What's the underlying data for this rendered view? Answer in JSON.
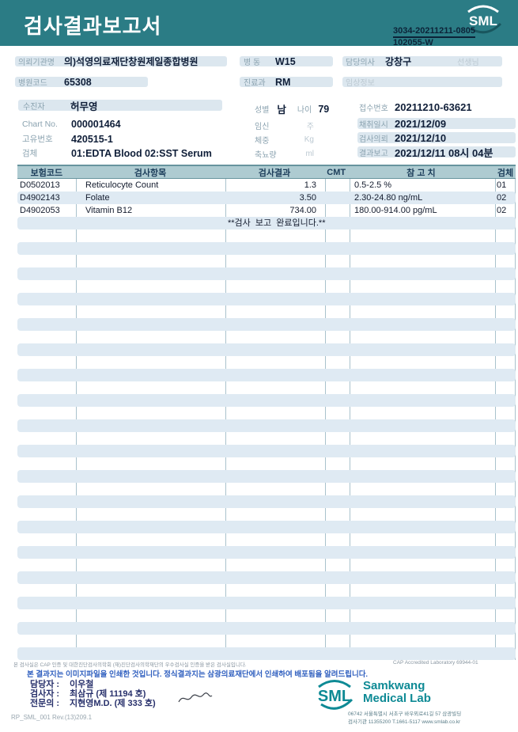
{
  "header": {
    "title": "검사결과보고서",
    "logo_text": "SML",
    "report_no_line1": "3034-20211211-0805",
    "report_no_line2": "102055-W"
  },
  "info": {
    "referral_org": {
      "label": "의뢰기관명",
      "value": "의)석영의료재단창원제일종합병원"
    },
    "hospital_code": {
      "label": "병원코드",
      "value": "65308"
    },
    "patient": {
      "label": "수진자",
      "value": "허무영"
    },
    "chart_no": {
      "label": "Chart No.",
      "value": "000001464"
    },
    "unique_no": {
      "label": "고유번호",
      "value": "420515-1"
    },
    "specimen": {
      "label": "검체",
      "value": "01:EDTA Blood 02:SST Serum"
    },
    "ward": {
      "label": "병 동",
      "value": "W15"
    },
    "department": {
      "label": "진료과",
      "value": "RM"
    },
    "sex": {
      "label": "성별",
      "value": "남"
    },
    "age": {
      "label": "나이",
      "value": "79"
    },
    "pregnancy": {
      "label": "임신",
      "unit": "주"
    },
    "weight": {
      "label": "체중",
      "unit": "Kg"
    },
    "urine_volume": {
      "label": "축뇨량",
      "unit": "ml"
    },
    "doctor": {
      "label": "담당의사",
      "value": "강창구",
      "suffix": "선생님"
    },
    "clinical_info": {
      "label": "임상정보",
      "value": ""
    },
    "receipt_no": {
      "label": "접수번호",
      "value": "20211210-63621"
    },
    "collection_date": {
      "label": "채취일시",
      "value": "2021/12/09"
    },
    "request_date": {
      "label": "검사의뢰",
      "value": "2021/12/10"
    },
    "report_date": {
      "label": "결과보고",
      "value": "2021/12/11 08시 04분"
    }
  },
  "table": {
    "headers": {
      "code": "보험코드",
      "name": "검사항목",
      "result": "검사결과",
      "cmt": "CMT",
      "reference": "참 고 치",
      "specimen": "검체"
    },
    "rows": [
      {
        "code": "D0502013",
        "name": "Reticulocyte Count",
        "result": "1.3",
        "cmt": "",
        "reference": "0.5-2.5 %",
        "specimen": "01"
      },
      {
        "code": "D4902143",
        "name": "Folate",
        "result": "3.50",
        "cmt": "",
        "reference": "2.30-24.80 ng/mL",
        "specimen": "02"
      },
      {
        "code": "D4902053",
        "name": "Vitamin B12",
        "result": "734.00",
        "cmt": "",
        "reference": "180.00-914.00 pg/mL",
        "specimen": "02"
      },
      {
        "code": "",
        "name": "",
        "result": "",
        "cmt": "",
        "reference": "",
        "specimen": "",
        "message": "**검사  보고  완료입니다.**"
      }
    ],
    "empty_row_count": 34
  },
  "footer": {
    "accreditation_note": "본 검사실은 CAP 인증 및 대한진단검사의학회 (재)진단검사의학재단의 우수검사실 인증을 받은 검사실입니다.",
    "cap_note": "CAP Accredited Laboratory 69944-01",
    "print_notice": "본 결과지는 이미지파일을 인쇄한 것입니다. 정식결과지는 삼광의료재단에서 인쇄하여 배포됨을 알려드립니다.",
    "staff": [
      {
        "label": "담당자 :",
        "value": "이우철"
      },
      {
        "label": "검사자 :",
        "value": "최삼규 (제 11194 호)"
      },
      {
        "label": "전문의 :",
        "value": "지현영M.D. (제 333 호)"
      }
    ],
    "doc_code": "RP_SML_001 Rev.(13)209.1",
    "logo": {
      "text": "SML",
      "name_line1": "Samkwang",
      "name_line2": "Medical Lab",
      "address": "06742 서울특별시 서초구 바우뫼로41길 57 삼광빌딩",
      "contact": "검사기관 11355200 T.1661-5117 www.smlab.co.kr"
    }
  },
  "colors": {
    "header_teal": "#2b7c85",
    "chip_bg": "#dce7ef",
    "stripe_bg": "#dfeaf3",
    "table_header_bg": "#aecbd1",
    "logo_teal": "#0e8a95",
    "notice_blue": "#2f5fbf"
  }
}
